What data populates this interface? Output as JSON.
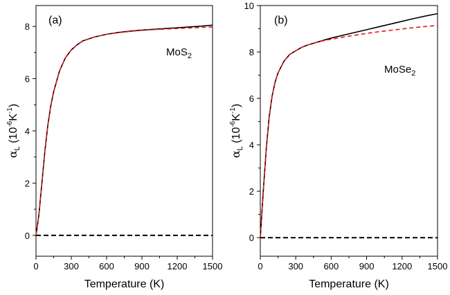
{
  "chart_data": [
    {
      "type": "line",
      "panel_label": "(a)",
      "material": {
        "base": "MoS",
        "sub": "2"
      },
      "xlabel": "Temperature (K)",
      "ylabel": {
        "alpha": "α",
        "sub": "L",
        "unit_pre": " (10",
        "sup1": "-6",
        "unit_mid": "K",
        "sup2": "-1",
        "unit_post": ")"
      },
      "xlim": [
        0,
        1500
      ],
      "ylim": [
        -0.8,
        8.8
      ],
      "xticks": [
        0,
        300,
        600,
        900,
        1200,
        1500
      ],
      "yticks": [
        0,
        2,
        4,
        6,
        8
      ],
      "series": [
        {
          "style": "solid",
          "color": "#000000",
          "x": [
            0,
            25,
            50,
            75,
            100,
            125,
            150,
            200,
            250,
            300,
            350,
            400,
            500,
            600,
            700,
            800,
            900,
            1000,
            1100,
            1200,
            1300,
            1400,
            1500
          ],
          "y": [
            0,
            0.8,
            2.0,
            3.2,
            4.2,
            4.95,
            5.5,
            6.3,
            6.8,
            7.1,
            7.3,
            7.45,
            7.6,
            7.7,
            7.77,
            7.82,
            7.86,
            7.89,
            7.92,
            7.95,
            7.98,
            8.01,
            8.05
          ]
        },
        {
          "style": "dashed",
          "color": "#e8141c",
          "x": [
            0,
            25,
            50,
            75,
            100,
            125,
            150,
            200,
            250,
            300,
            350,
            400,
            500,
            600,
            700,
            800,
            900,
            1000,
            1100,
            1200,
            1300,
            1400,
            1500
          ],
          "y": [
            0,
            0.8,
            2.0,
            3.2,
            4.2,
            4.95,
            5.5,
            6.3,
            6.8,
            7.1,
            7.3,
            7.45,
            7.6,
            7.7,
            7.76,
            7.81,
            7.85,
            7.88,
            7.9,
            7.92,
            7.94,
            7.96,
            7.98
          ]
        },
        {
          "style": "dashed",
          "color": "#000000",
          "x": [
            0,
            1500
          ],
          "y": [
            0,
            0
          ]
        }
      ]
    },
    {
      "type": "line",
      "panel_label": "(b)",
      "material": {
        "base": "MoSe",
        "sub": "2"
      },
      "xlabel": "Temperature (K)",
      "ylabel": {
        "alpha": "α",
        "sub": "L",
        "unit_pre": " (10",
        "sup1": "-6",
        "unit_mid": "K",
        "sup2": "-1",
        "unit_post": ")"
      },
      "xlim": [
        0,
        1500
      ],
      "ylim": [
        -0.8,
        10
      ],
      "xticks": [
        0,
        300,
        600,
        900,
        1200,
        1500
      ],
      "yticks": [
        0,
        2,
        4,
        6,
        8,
        10
      ],
      "series": [
        {
          "style": "solid",
          "color": "#000000",
          "x": [
            0,
            25,
            50,
            75,
            100,
            125,
            150,
            200,
            250,
            300,
            350,
            400,
            500,
            600,
            700,
            800,
            900,
            1000,
            1100,
            1200,
            1300,
            1400,
            1500
          ],
          "y": [
            0,
            2.0,
            3.8,
            5.2,
            6.1,
            6.7,
            7.1,
            7.6,
            7.9,
            8.05,
            8.2,
            8.3,
            8.45,
            8.6,
            8.72,
            8.84,
            8.96,
            9.08,
            9.2,
            9.32,
            9.44,
            9.55,
            9.65
          ]
        },
        {
          "style": "dashed",
          "color": "#e8141c",
          "x": [
            0,
            25,
            50,
            75,
            100,
            125,
            150,
            200,
            250,
            300,
            350,
            400,
            500,
            600,
            700,
            800,
            900,
            1000,
            1100,
            1200,
            1300,
            1400,
            1500
          ],
          "y": [
            0,
            2.0,
            3.8,
            5.2,
            6.1,
            6.7,
            7.1,
            7.6,
            7.9,
            8.05,
            8.2,
            8.3,
            8.45,
            8.55,
            8.64,
            8.72,
            8.8,
            8.87,
            8.93,
            8.99,
            9.05,
            9.1,
            9.14
          ]
        },
        {
          "style": "dashed",
          "color": "#000000",
          "x": [
            0,
            1500
          ],
          "y": [
            0,
            0
          ]
        }
      ]
    }
  ]
}
